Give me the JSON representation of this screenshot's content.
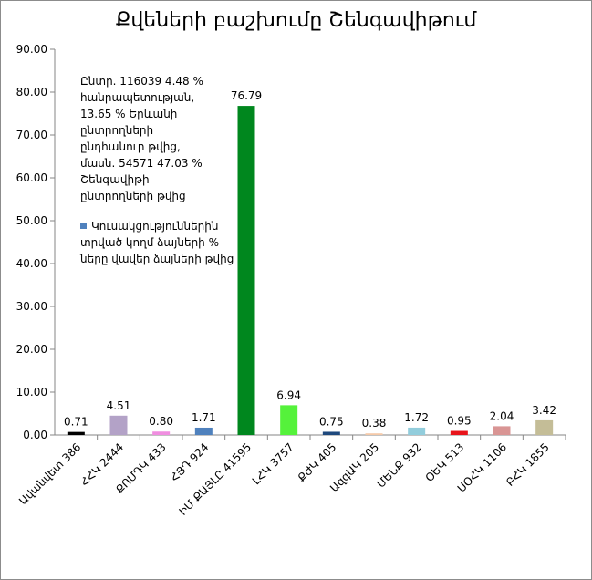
{
  "chart_data": {
    "type": "bar",
    "title": "Քվեների բաշխումը Շենգավիթում",
    "ylim": [
      0,
      90
    ],
    "yticks": [
      "0.00",
      "10.00",
      "20.00",
      "30.00",
      "40.00",
      "50.00",
      "60.00",
      "70.00",
      "80.00",
      "90.00"
    ],
    "grid": false,
    "categories": [
      "Ավանվետ 386",
      "ՀՀԿ 2444",
      "ՔՈՄԴԿ 433",
      "ՀՅԴ 924",
      "ԻՄ ՔԱՅԼԸ 41595",
      "ԼՀԿ 3757",
      "ՔԺԿ 405",
      "ԱզգԱԿ 205",
      "ՄԵՆՔ 932",
      "ՕԵԿ 513",
      "ՍՕՀԿ 1106",
      "ԲՀԿ 1855"
    ],
    "values": [
      0.71,
      4.51,
      0.8,
      1.71,
      76.79,
      6.94,
      0.75,
      0.38,
      1.72,
      0.95,
      2.04,
      3.42
    ],
    "data_labels": [
      "0.71",
      "4.51",
      "0.80",
      "1.71",
      "76.79",
      "6.94",
      "0.75",
      "0.38",
      "1.72",
      "0.95",
      "2.04",
      "3.42"
    ],
    "colors": [
      "#000000",
      "#b3a2c7",
      "#f08ee0",
      "#4f81bd",
      "#00871e",
      "#55f23b",
      "#1f497d",
      "#f5c9a8",
      "#92cddc",
      "#e8131a",
      "#d99594",
      "#c4bd97"
    ],
    "annotation": "Ընտր. 116039 4.48 % հանրապետության, 13.65 % Երևանի ընտրողների ընդհանուր թվից, մասն. 54571 47.03 % Շենգավիթի ընտրողների թվից",
    "legend": [
      {
        "name": "Կուսակցություններին տրված կողմ ձայների % - ները վավեր ձայների թվից",
        "color": "#4f81bd"
      }
    ]
  }
}
